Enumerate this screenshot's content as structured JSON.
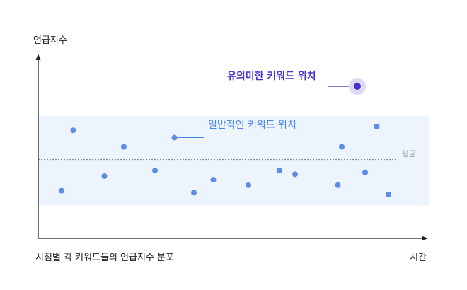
{
  "chart_data": {
    "type": "scatter",
    "title": "",
    "ylabel": "언급지수",
    "xlabel": "시간",
    "caption": "시점별 각 키워드들의 언급지수 분포",
    "xlim": [
      0,
      100
    ],
    "ylim": [
      0,
      100
    ],
    "grid": false,
    "mean": {
      "label": "평균",
      "value": 43
    },
    "normal_band": [
      18,
      67
    ],
    "series": [
      {
        "points": [
          {
            "x": 6,
            "y": 26
          },
          {
            "x": 9,
            "y": 59
          },
          {
            "x": 17,
            "y": 34
          },
          {
            "x": 22,
            "y": 50
          },
          {
            "x": 30,
            "y": 37
          },
          {
            "x": 35,
            "y": 55
          },
          {
            "x": 40,
            "y": 25
          },
          {
            "x": 45,
            "y": 32
          },
          {
            "x": 54,
            "y": 29
          },
          {
            "x": 62,
            "y": 37
          },
          {
            "x": 66,
            "y": 35
          },
          {
            "x": 77,
            "y": 29
          },
          {
            "x": 78,
            "y": 50
          },
          {
            "x": 84,
            "y": 36
          },
          {
            "x": 87,
            "y": 61
          },
          {
            "x": 90,
            "y": 24
          }
        ]
      },
      {
        "points": [
          {
            "x": 82,
            "y": 83
          }
        ]
      }
    ],
    "annotations": [
      {
        "text": "일반적인 키워드 위치",
        "x": 35,
        "y": 55,
        "color": "#4a86e8"
      },
      {
        "text": "유의미한 키워드 위치",
        "x": 82,
        "y": 83,
        "color": "#4433cc"
      }
    ]
  }
}
